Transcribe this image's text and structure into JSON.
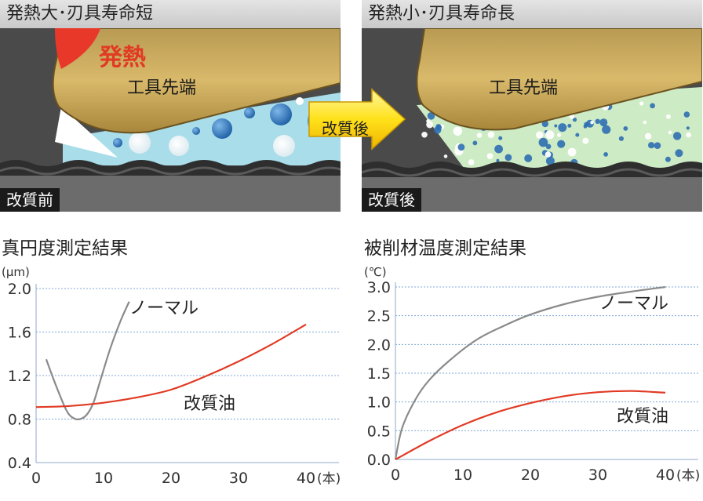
{
  "panels": {
    "before": {
      "header": "発熱大･刃具寿命短",
      "tag": "改質前",
      "heat_label": "発熱",
      "tool_label": "工具先端"
    },
    "after": {
      "header": "発熱小･刃具寿命長",
      "tag": "改質後",
      "tool_label": "工具先端"
    },
    "arrow_label": "改質後"
  },
  "colors": {
    "normal": "#8a8a8a",
    "improved": "#e13a24",
    "grid": "#7fa8d8",
    "tool": "#c9a659",
    "coolant_before": "#a8dde9",
    "coolant_after": "#cdebc4"
  },
  "chart_data": [
    {
      "type": "line",
      "title": "真円度測定結果",
      "ylabel": "(μm)",
      "xlabel": "(本)",
      "xlim": [
        0,
        45
      ],
      "ylim": [
        0.4,
        2.0
      ],
      "xticks": [
        0,
        10,
        20,
        30,
        40
      ],
      "yticks": [
        0.4,
        0.8,
        1.2,
        1.6,
        2.0
      ],
      "ytick_labels": [
        "0.4",
        "0.8",
        "1.2",
        "1.6",
        "2.0"
      ],
      "grid": "horizontal dotted",
      "series": [
        {
          "name": "ノーマル",
          "color": "#8a8a8a",
          "x": [
            1.5,
            3,
            4.5,
            5.5,
            6.5,
            7.5,
            8.5,
            9.5,
            11,
            12.5,
            13.8
          ],
          "y": [
            1.35,
            1.1,
            0.88,
            0.81,
            0.8,
            0.84,
            0.95,
            1.15,
            1.45,
            1.7,
            1.88
          ]
        },
        {
          "name": "改質油",
          "color": "#e13a24",
          "x": [
            0,
            5,
            10,
            15,
            20,
            25,
            30,
            35,
            40
          ],
          "y": [
            0.91,
            0.92,
            0.95,
            1.0,
            1.07,
            1.19,
            1.33,
            1.49,
            1.67
          ]
        }
      ]
    },
    {
      "type": "line",
      "title": "被削材温度測定結果",
      "ylabel": "(℃)",
      "xlabel": "(本)",
      "xlim": [
        0,
        43
      ],
      "ylim": [
        0,
        3.0
      ],
      "xticks": [
        0,
        10,
        20,
        30,
        40
      ],
      "yticks": [
        0,
        0.5,
        1.0,
        1.5,
        2.0,
        2.5,
        3.0
      ],
      "ytick_labels": [
        "0.0",
        "0.5",
        "1.0",
        "1.5",
        "2.0",
        "2.5",
        "3.0"
      ],
      "grid": "horizontal dotted",
      "series": [
        {
          "name": "ノーマル",
          "color": "#8a8a8a",
          "x": [
            0,
            1,
            3,
            5,
            8,
            12,
            16,
            20,
            25,
            30,
            35,
            40
          ],
          "y": [
            0,
            0.55,
            1.05,
            1.38,
            1.72,
            2.08,
            2.32,
            2.52,
            2.7,
            2.83,
            2.92,
            3.0
          ]
        },
        {
          "name": "改質油",
          "color": "#e13a24",
          "x": [
            0,
            5,
            10,
            15,
            20,
            25,
            30,
            35,
            40
          ],
          "y": [
            0,
            0.32,
            0.6,
            0.82,
            0.98,
            1.1,
            1.17,
            1.19,
            1.16
          ]
        }
      ]
    }
  ]
}
